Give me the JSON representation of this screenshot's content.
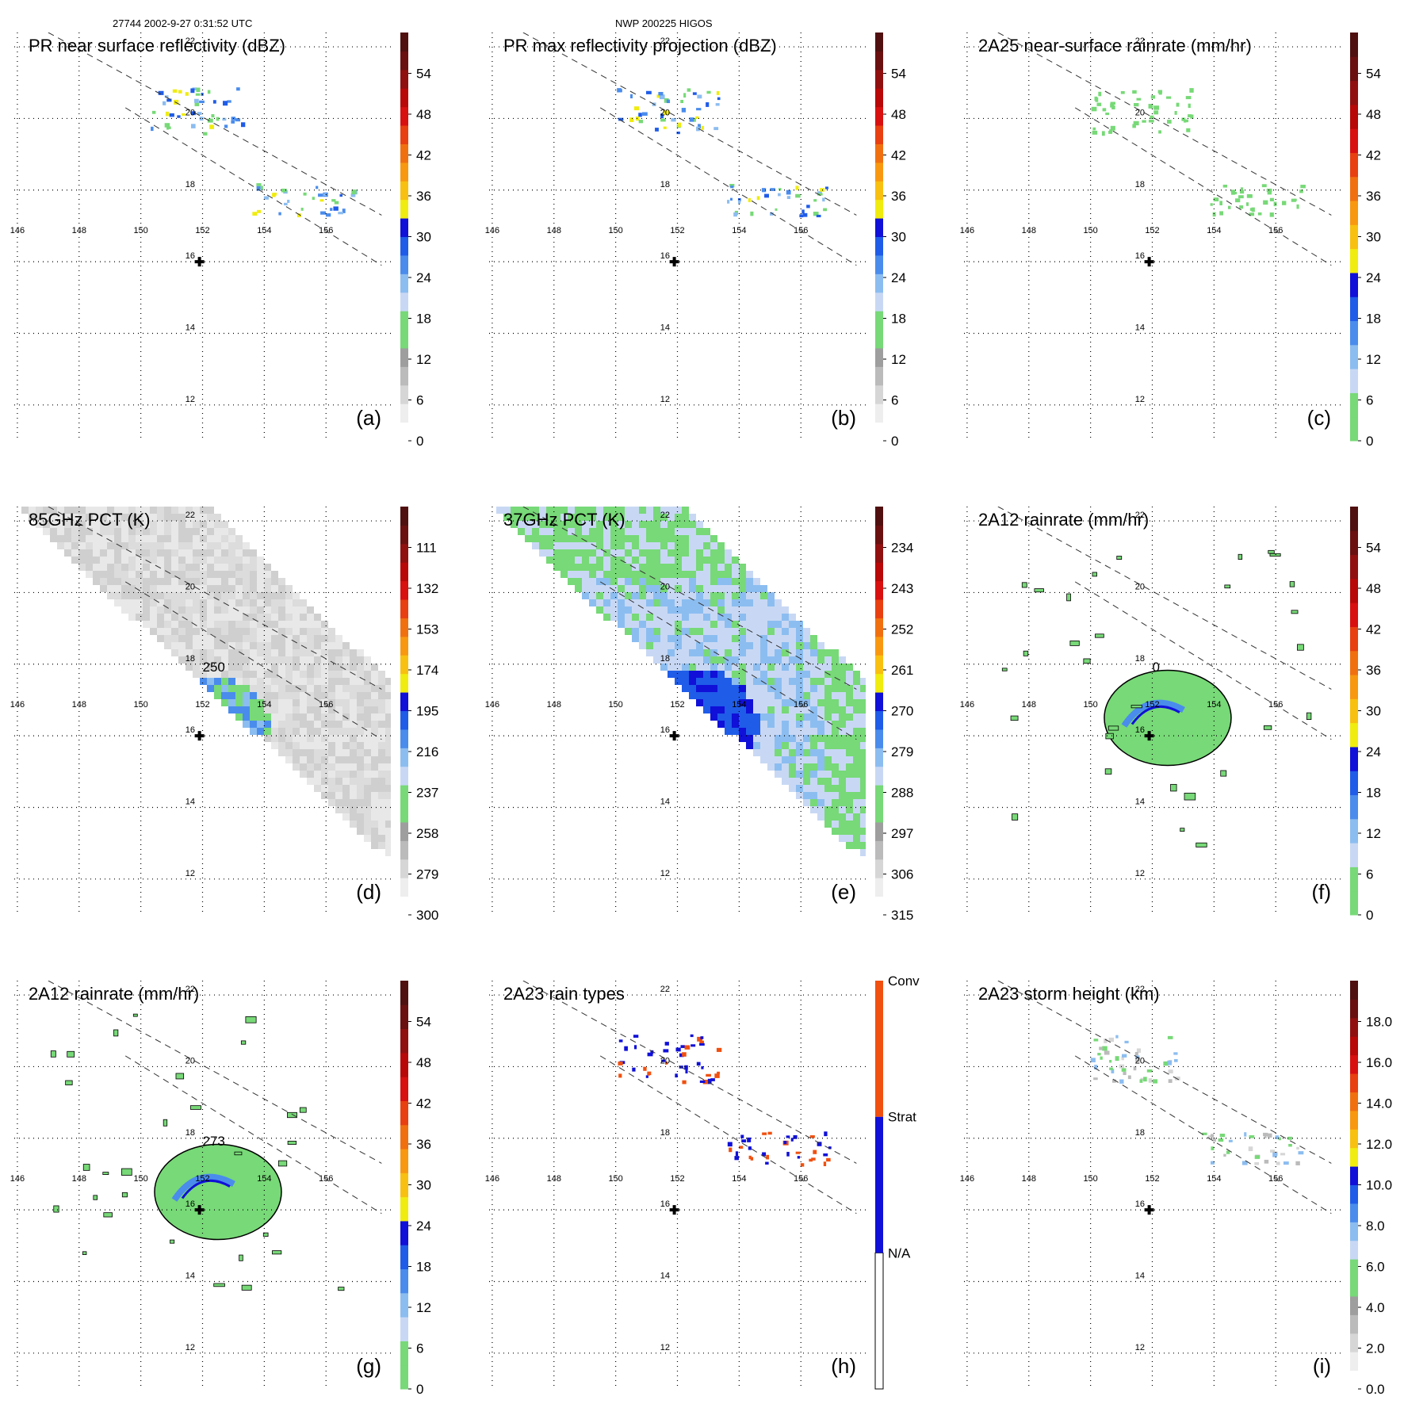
{
  "header": {
    "left": "27744 2002-9-27 0:31:52 UTC",
    "right": "NWP 200225 HIGOS"
  },
  "axes": {
    "lon_ticks": [
      "146",
      "148",
      "150",
      "152",
      "154",
      "156"
    ],
    "lat_ticks": [
      "22",
      "20",
      "18",
      "16",
      "14",
      "12"
    ],
    "lon_range": [
      145.9,
      158.1
    ],
    "lat_range": [
      11.0,
      22.4
    ],
    "storm_center": [
      151.9,
      16.0
    ]
  },
  "chart_data": [
    {
      "panel": "(a)",
      "type": "heatmap",
      "title": "PR near surface reflectivity (dBZ)",
      "field": "swath-rain",
      "center_value": "",
      "colorbar": {
        "kind": "numeric",
        "labels": [
          "0",
          "6",
          "12",
          "18",
          "24",
          "30",
          "36",
          "42",
          "48",
          "54"
        ],
        "colors": [
          "#ffffff",
          "#eeeeee",
          "#d6d6d6",
          "#bbbbbb",
          "#9e9e9e",
          "#77d977",
          "#77d977",
          "#c8d8f4",
          "#8cbdf0",
          "#4a8cec",
          "#1f5ce8",
          "#1010d8",
          "#f0ec10",
          "#f8c010",
          "#f89810",
          "#f07010",
          "#e84010",
          "#d81010",
          "#b80808",
          "#901010",
          "#6a1010",
          "#501010"
        ]
      }
    },
    {
      "panel": "(b)",
      "type": "heatmap",
      "title": "PR max reflectivity projection (dBZ)",
      "field": "swath-rain",
      "center_value": "",
      "colorbar": {
        "kind": "numeric",
        "labels": [
          "0",
          "6",
          "12",
          "18",
          "24",
          "30",
          "36",
          "42",
          "48",
          "54"
        ],
        "colors": [
          "#ffffff",
          "#eeeeee",
          "#d6d6d6",
          "#bbbbbb",
          "#9e9e9e",
          "#77d977",
          "#77d977",
          "#c8d8f4",
          "#8cbdf0",
          "#4a8cec",
          "#1f5ce8",
          "#1010d8",
          "#f0ec10",
          "#f8c010",
          "#f89810",
          "#f07010",
          "#e84010",
          "#d81010",
          "#b80808",
          "#901010",
          "#6a1010",
          "#501010"
        ]
      }
    },
    {
      "panel": "(c)",
      "type": "heatmap",
      "title": "2A25 near-surface rainrate (mm/hr)",
      "field": "swath-rain",
      "center_value": "",
      "colorbar": {
        "kind": "numeric",
        "labels": [
          "0",
          "6",
          "12",
          "18",
          "24",
          "30",
          "36",
          "42",
          "48",
          "54"
        ],
        "colors": [
          "#77d977",
          "#77d977",
          "#c8d8f4",
          "#8cbdf0",
          "#4a8cec",
          "#1f5ce8",
          "#1010d8",
          "#f0ec10",
          "#f8c010",
          "#f89810",
          "#f07010",
          "#e84010",
          "#d81010",
          "#b80808",
          "#901010",
          "#6a1010",
          "#501010"
        ]
      }
    },
    {
      "panel": "(d)",
      "type": "heatmap",
      "title": "85GHz PCT (K)",
      "field": "pct85",
      "center_value": "250",
      "colorbar": {
        "kind": "numeric",
        "labels": [
          "300",
          "279",
          "258",
          "237",
          "216",
          "195",
          "174",
          "153",
          "132",
          "111"
        ],
        "colors": [
          "#ffffff",
          "#eeeeee",
          "#d6d6d6",
          "#bbbbbb",
          "#9e9e9e",
          "#77d977",
          "#77d977",
          "#c8d8f4",
          "#8cbdf0",
          "#4a8cec",
          "#1f5ce8",
          "#1010d8",
          "#f0ec10",
          "#f8c010",
          "#f89810",
          "#f07010",
          "#e84010",
          "#d81010",
          "#b80808",
          "#901010",
          "#6a1010",
          "#501010"
        ]
      }
    },
    {
      "panel": "(e)",
      "type": "heatmap",
      "title": "37GHz PCT (K)",
      "field": "pct37",
      "center_value": "",
      "colorbar": {
        "kind": "numeric",
        "labels": [
          "315",
          "306",
          "297",
          "288",
          "279",
          "270",
          "261",
          "252",
          "243",
          "234"
        ],
        "colors": [
          "#ffffff",
          "#eeeeee",
          "#d6d6d6",
          "#bbbbbb",
          "#9e9e9e",
          "#77d977",
          "#77d977",
          "#c8d8f4",
          "#8cbdf0",
          "#4a8cec",
          "#1f5ce8",
          "#1010d8",
          "#f0ec10",
          "#f8c010",
          "#f89810",
          "#f07010",
          "#e84010",
          "#d81010",
          "#b80808",
          "#901010",
          "#6a1010",
          "#501010"
        ]
      }
    },
    {
      "panel": "(f)",
      "type": "heatmap",
      "title": "2A12 rainrate (mm/hr)",
      "field": "tmi-rain",
      "center_value": "0",
      "colorbar": {
        "kind": "numeric",
        "labels": [
          "0",
          "6",
          "12",
          "18",
          "24",
          "30",
          "36",
          "42",
          "48",
          "54"
        ],
        "colors": [
          "#77d977",
          "#77d977",
          "#c8d8f4",
          "#8cbdf0",
          "#4a8cec",
          "#1f5ce8",
          "#1010d8",
          "#f0ec10",
          "#f8c010",
          "#f89810",
          "#f07010",
          "#e84010",
          "#d81010",
          "#b80808",
          "#901010",
          "#6a1010",
          "#501010"
        ]
      }
    },
    {
      "panel": "(g)",
      "type": "heatmap",
      "title": "2A12 rainrate (mm/hr)",
      "field": "tmi-rain",
      "center_value": "273",
      "colorbar": {
        "kind": "numeric",
        "labels": [
          "0",
          "6",
          "12",
          "18",
          "24",
          "30",
          "36",
          "42",
          "48",
          "54"
        ],
        "colors": [
          "#77d977",
          "#77d977",
          "#c8d8f4",
          "#8cbdf0",
          "#4a8cec",
          "#1f5ce8",
          "#1010d8",
          "#f0ec10",
          "#f8c010",
          "#f89810",
          "#f07010",
          "#e84010",
          "#d81010",
          "#b80808",
          "#901010",
          "#6a1010",
          "#501010"
        ]
      }
    },
    {
      "panel": "(h)",
      "type": "heatmap",
      "title": "2A23 rain types",
      "field": "raintype",
      "center_value": "",
      "colorbar": {
        "kind": "categorical",
        "labels": [
          "N/A",
          "Strat",
          "Conv"
        ],
        "colors": [
          "#ffffff",
          "#1010d8",
          "#f05010"
        ]
      }
    },
    {
      "panel": "(i)",
      "type": "heatmap",
      "title": "2A23 storm height (km)",
      "field": "storm-height",
      "center_value": "",
      "colorbar": {
        "kind": "numeric",
        "labels": [
          "0.0",
          "2.0",
          "4.0",
          "6.0",
          "8.0",
          "10.0",
          "12.0",
          "14.0",
          "16.0",
          "18.0"
        ],
        "colors": [
          "#ffffff",
          "#eeeeee",
          "#d6d6d6",
          "#bbbbbb",
          "#9e9e9e",
          "#77d977",
          "#77d977",
          "#c8d8f4",
          "#8cbdf0",
          "#4a8cec",
          "#1f5ce8",
          "#1010d8",
          "#f0ec10",
          "#f8c010",
          "#f89810",
          "#f07010",
          "#e84010",
          "#d81010",
          "#b80808",
          "#901010",
          "#6a1010",
          "#501010"
        ]
      }
    }
  ]
}
